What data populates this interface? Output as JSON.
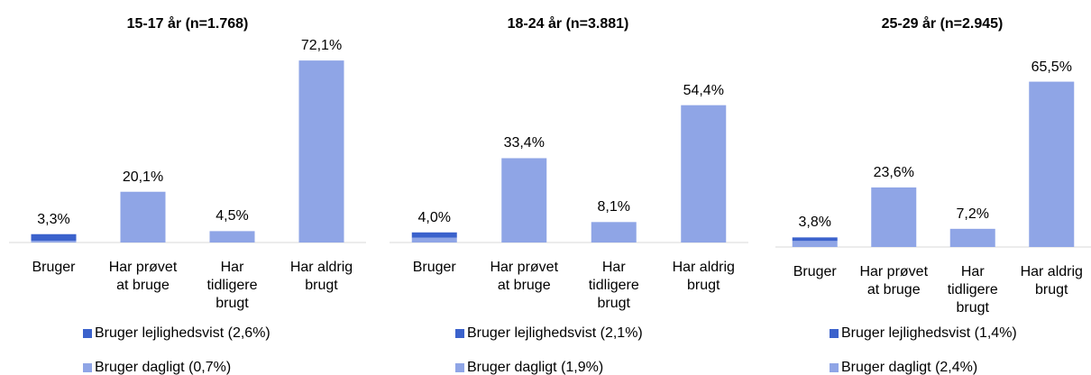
{
  "chart_data": [
    {
      "type": "bar",
      "title": "15-17 år (n=1.768)",
      "categories": [
        "Bruger",
        "Har prøvet at bruge",
        "Har tidligere brugt",
        "Har aldrig brugt"
      ],
      "values": [
        3.3,
        20.1,
        4.5,
        72.1
      ],
      "value_labels": [
        "3,3%",
        "20,1%",
        "4,5%",
        "72,1%"
      ],
      "color": "#8fa5e6",
      "series": [
        {
          "name": "Bruger lejlighedsvist (2,6%)",
          "color": "#3b62cc",
          "values": [
            2.6,
            null,
            null,
            null
          ]
        },
        {
          "name": "Bruger dagligt (0,7%)",
          "color": "#8fa5e6",
          "values": [
            0.7,
            null,
            null,
            null
          ]
        }
      ],
      "ylim": [
        0,
        80
      ]
    },
    {
      "type": "bar",
      "title": "18-24 år (n=3.881)",
      "categories": [
        "Bruger",
        "Har prøvet at bruge",
        "Har tidligere brugt",
        "Har aldrig brugt"
      ],
      "values": [
        4.0,
        33.4,
        8.1,
        54.4
      ],
      "value_labels": [
        "4,0%",
        "33,4%",
        "8,1%",
        "54,4%"
      ],
      "color": "#8fa5e6",
      "series": [
        {
          "name": "Bruger lejlighedsvist (2,1%)",
          "color": "#3b62cc",
          "values": [
            2.1,
            null,
            null,
            null
          ]
        },
        {
          "name": "Bruger dagligt (1,9%)",
          "color": "#8fa5e6",
          "values": [
            1.9,
            null,
            null,
            null
          ]
        }
      ],
      "ylim": [
        0,
        80
      ]
    },
    {
      "type": "bar",
      "title": "25-29 år (n=2.945)",
      "categories": [
        "Bruger",
        "Har prøvet at bruge",
        "Har tidligere brugt",
        "Har aldrig brugt"
      ],
      "values": [
        3.8,
        23.6,
        7.2,
        65.5
      ],
      "value_labels": [
        "3,8%",
        "23,6%",
        "7,2%",
        "65,5%"
      ],
      "color": "#8fa5e6",
      "series": [
        {
          "name": "Bruger lejlighedsvist (1,4%)",
          "color": "#3b62cc",
          "values": [
            1.4,
            null,
            null,
            null
          ]
        },
        {
          "name": "Bruger dagligt (2,4%)",
          "color": "#8fa5e6",
          "values": [
            2.4,
            null,
            null,
            null
          ]
        }
      ],
      "ylim": [
        0,
        80
      ]
    }
  ]
}
